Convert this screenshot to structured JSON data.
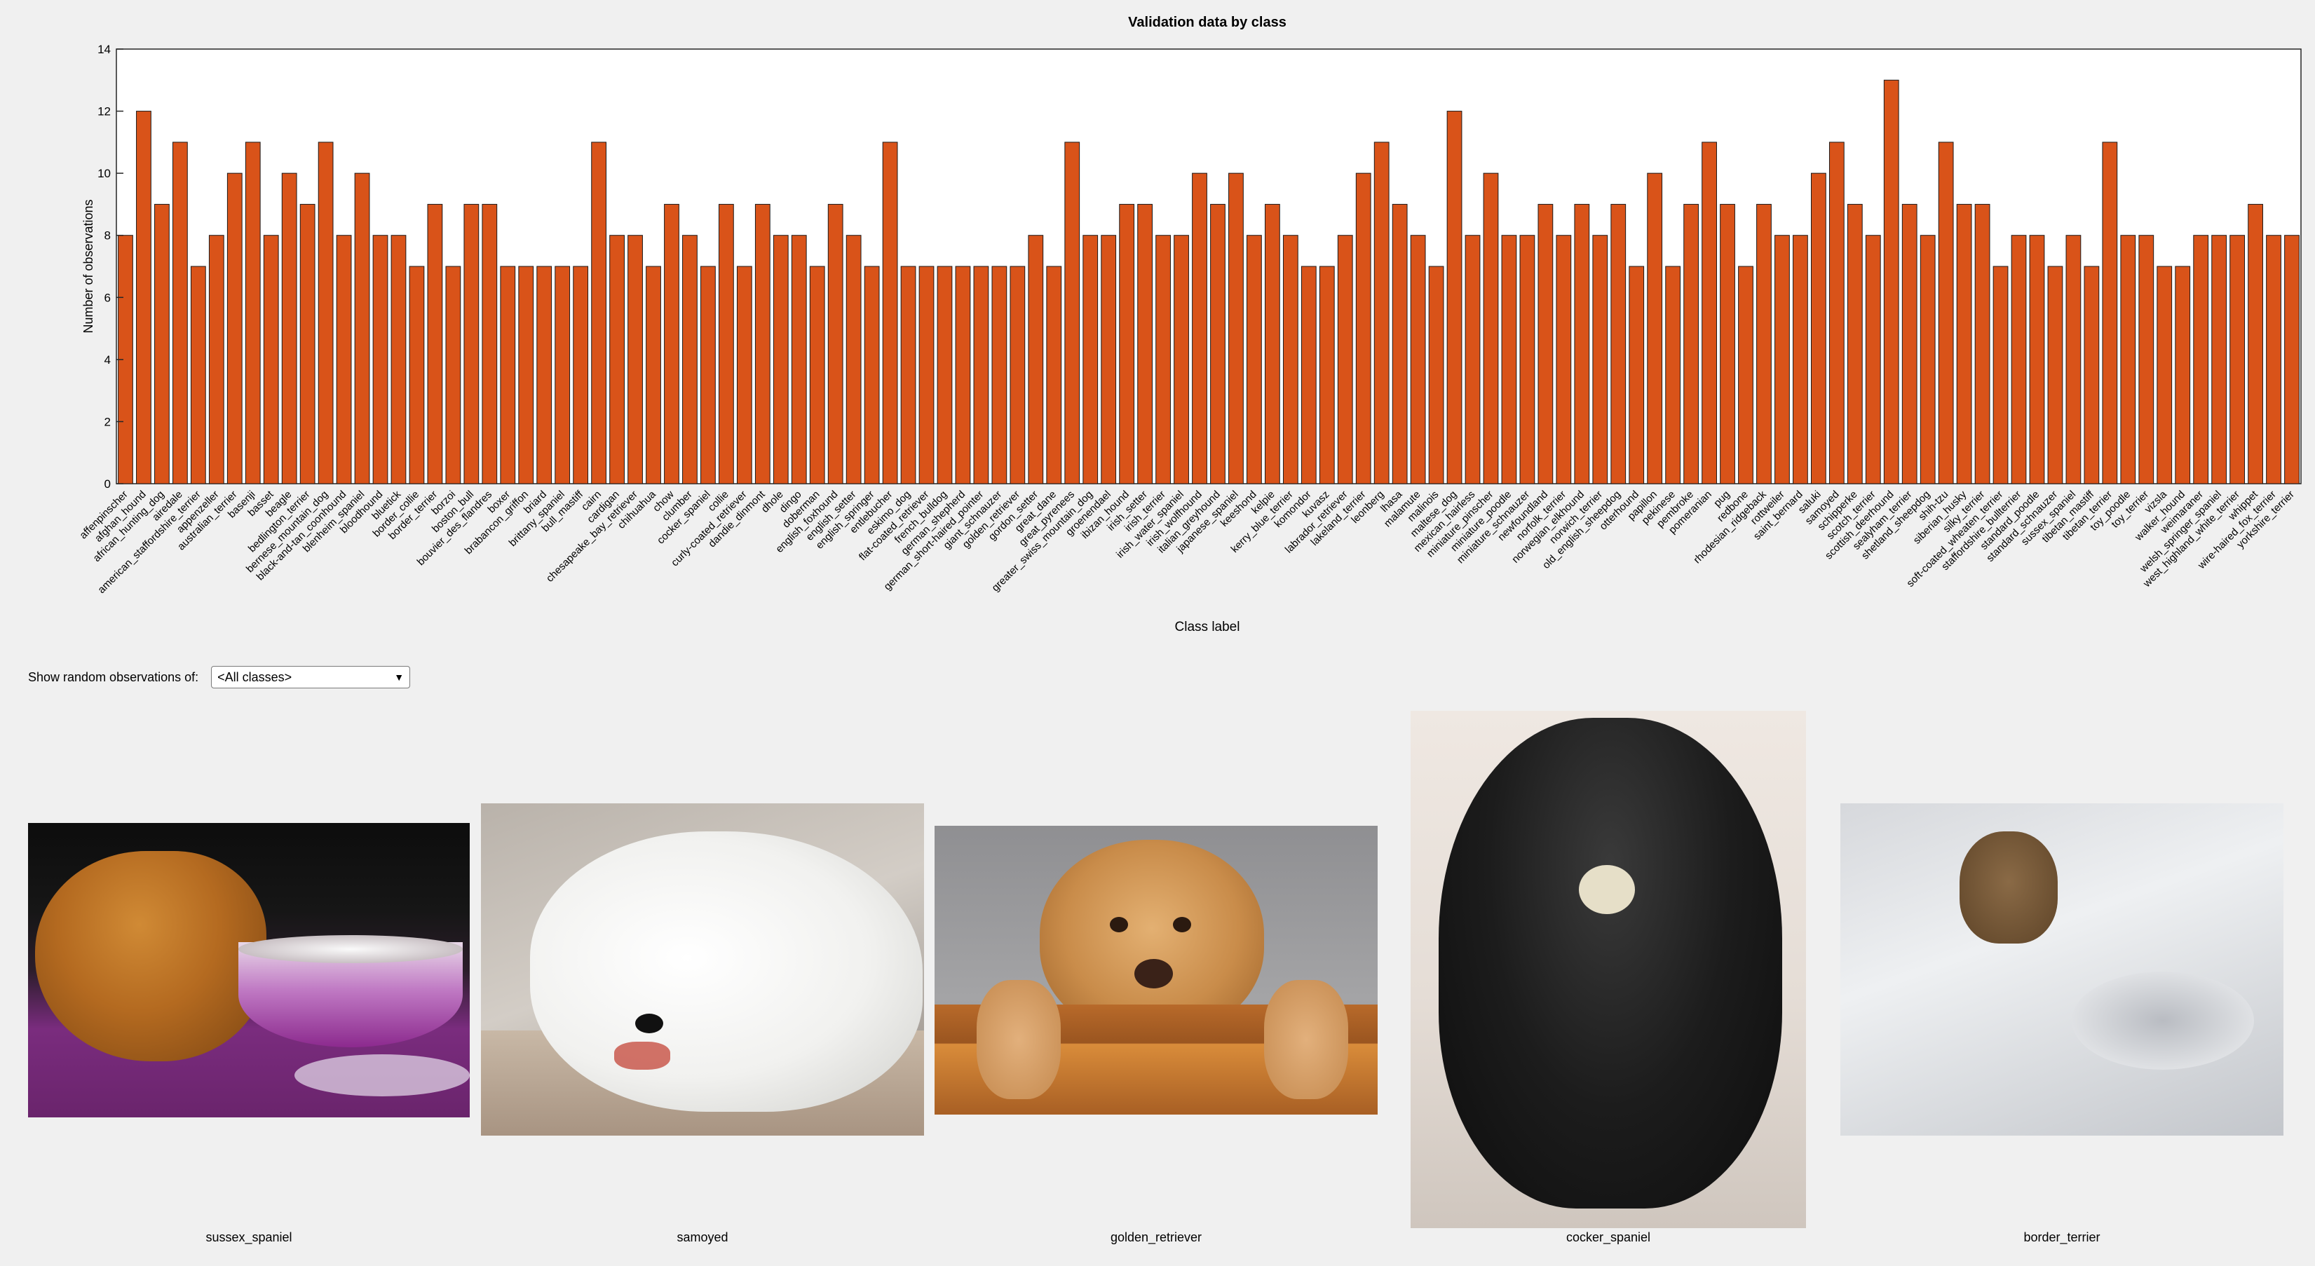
{
  "chart_data": {
    "type": "bar",
    "title": "Validation data by class",
    "xlabel": "Class label",
    "ylabel": "Number of observations",
    "ylim": [
      0,
      14
    ],
    "yticks": [
      0,
      2,
      4,
      6,
      8,
      10,
      12,
      14
    ],
    "bar_color": "#d95319",
    "categories": [
      "affenpinscher",
      "afghan_hound",
      "african_hunting_dog",
      "airedale",
      "american_staffordshire_terrier",
      "appenzeller",
      "australian_terrier",
      "basenji",
      "basset",
      "beagle",
      "bedlington_terrier",
      "bernese_mountain_dog",
      "black-and-tan_coonhound",
      "blenheim_spaniel",
      "bloodhound",
      "bluetick",
      "border_collie",
      "border_terrier",
      "borzoi",
      "boston_bull",
      "bouvier_des_flandres",
      "boxer",
      "brabancon_griffon",
      "briard",
      "brittany_spaniel",
      "bull_mastiff",
      "cairn",
      "cardigan",
      "chesapeake_bay_retriever",
      "chihuahua",
      "chow",
      "clumber",
      "cocker_spaniel",
      "collie",
      "curly-coated_retriever",
      "dandie_dinmont",
      "dhole",
      "dingo",
      "doberman",
      "english_foxhound",
      "english_setter",
      "english_springer",
      "entlebucher",
      "eskimo_dog",
      "flat-coated_retriever",
      "french_bulldog",
      "german_shepherd",
      "german_short-haired_pointer",
      "giant_schnauzer",
      "golden_retriever",
      "gordon_setter",
      "great_dane",
      "great_pyrenees",
      "greater_swiss_mountain_dog",
      "groenendael",
      "ibizan_hound",
      "irish_setter",
      "irish_terrier",
      "irish_water_spaniel",
      "irish_wolfhound",
      "italian_greyhound",
      "japanese_spaniel",
      "keeshond",
      "kelpie",
      "kerry_blue_terrier",
      "komondor",
      "kuvasz",
      "labrador_retriever",
      "lakeland_terrier",
      "leonberg",
      "lhasa",
      "malamute",
      "malinois",
      "maltese_dog",
      "mexican_hairless",
      "miniature_pinscher",
      "miniature_poodle",
      "miniature_schnauzer",
      "newfoundland",
      "norfolk_terrier",
      "norwegian_elkhound",
      "norwich_terrier",
      "old_english_sheepdog",
      "otterhound",
      "papillon",
      "pekinese",
      "pembroke",
      "pomeranian",
      "pug",
      "redbone",
      "rhodesian_ridgeback",
      "rottweiler",
      "saint_bernard",
      "saluki",
      "samoyed",
      "schipperke",
      "scotch_terrier",
      "scottish_deerhound",
      "sealyham_terrier",
      "shetland_sheepdog",
      "shih-tzu",
      "siberian_husky",
      "silky_terrier",
      "soft-coated_wheaten_terrier",
      "staffordshire_bullterrier",
      "standard_poodle",
      "standard_schnauzer",
      "sussex_spaniel",
      "tibetan_mastiff",
      "tibetan_terrier",
      "toy_poodle",
      "toy_terrier",
      "vizsla",
      "walker_hound",
      "weimaraner",
      "welsh_springer_spaniel",
      "west_highland_white_terrier",
      "whippet",
      "wire-haired_fox_terrier",
      "yorkshire_terrier"
    ],
    "values": [
      8,
      12,
      9,
      11,
      7,
      8,
      10,
      11,
      8,
      10,
      9,
      11,
      8,
      10,
      8,
      8,
      7,
      9,
      7,
      9,
      9,
      7,
      7,
      7,
      7,
      7,
      11,
      8,
      8,
      7,
      9,
      8,
      7,
      9,
      7,
      9,
      8,
      8,
      7,
      9,
      8,
      7,
      11,
      7,
      7,
      7,
      7,
      7,
      7,
      7,
      8,
      7,
      11,
      8,
      8,
      9,
      9,
      8,
      8,
      10,
      9,
      10,
      8,
      9,
      8,
      7,
      7,
      8,
      10,
      11,
      9,
      8,
      7,
      12,
      8,
      10,
      8,
      8,
      9,
      8,
      9,
      8,
      9,
      7,
      10,
      7,
      9,
      11,
      9,
      7,
      9,
      8,
      8,
      10,
      11,
      9,
      8,
      13,
      9,
      8,
      11,
      9,
      9,
      7,
      8,
      8,
      7,
      8,
      7,
      11,
      8,
      8,
      7,
      7,
      8,
      8,
      8,
      9,
      8,
      8
    ]
  },
  "controls": {
    "label": "Show random observations of:",
    "dropdown_value": "<All classes>"
  },
  "samples": [
    {
      "caption": "sussex_spaniel"
    },
    {
      "caption": "samoyed"
    },
    {
      "caption": "golden_retriever"
    },
    {
      "caption": "cocker_spaniel"
    },
    {
      "caption": "border_terrier"
    }
  ]
}
